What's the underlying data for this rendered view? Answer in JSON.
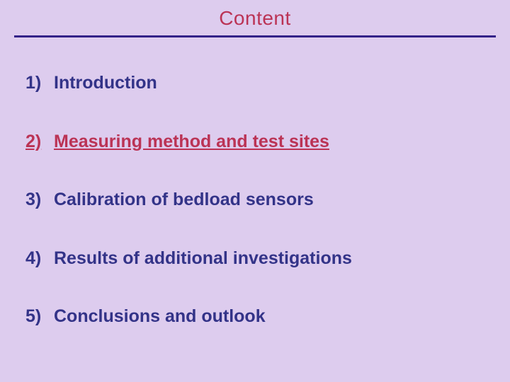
{
  "slide": {
    "background_color": "#ddccee",
    "title": "Content",
    "title_color": "#bb3355",
    "rule_color": "#332288",
    "text_color": "#333388",
    "highlight_color": "#bb3355",
    "title_fontsize": 28,
    "item_fontsize": 25,
    "items": [
      {
        "num": "1)",
        "label": "Introduction",
        "highlight": false
      },
      {
        "num": "2)",
        "label": "Measuring method and test sites",
        "highlight": true
      },
      {
        "num": "3)",
        "label": "Calibration of bedload sensors",
        "highlight": false
      },
      {
        "num": "4)",
        "label": "Results of additional investigations",
        "highlight": false
      },
      {
        "num": "5)",
        "label": "Conclusions and outlook",
        "highlight": false
      }
    ]
  }
}
